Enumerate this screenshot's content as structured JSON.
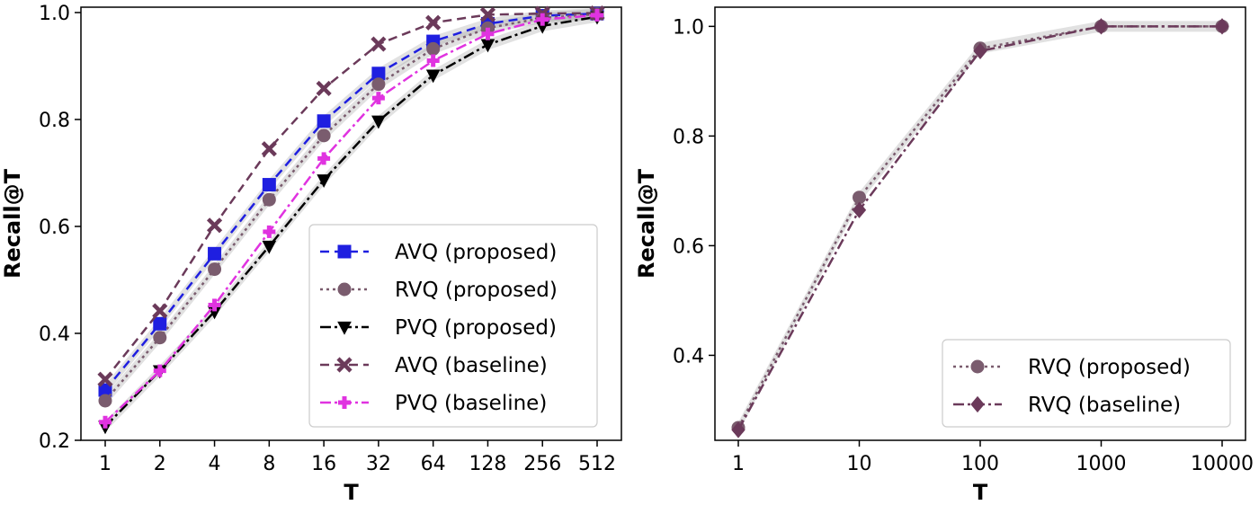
{
  "chart_data": [
    {
      "type": "line",
      "xlabel": "T",
      "ylabel": "Recall@T",
      "x_scale": "log2",
      "categories": [
        "1",
        "2",
        "4",
        "8",
        "16",
        "32",
        "64",
        "128",
        "256",
        "512"
      ],
      "x": [
        1,
        2,
        4,
        8,
        16,
        32,
        64,
        128,
        256,
        512
      ],
      "ylim": [
        0.2,
        1.01
      ],
      "yticks": [
        "0.2",
        "0.4",
        "0.6",
        "0.8",
        "1.0"
      ],
      "ytick_values": [
        0.2,
        0.4,
        0.6,
        0.8,
        1.0
      ],
      "grid": false,
      "legend_position": "lower-right",
      "series": [
        {
          "name": "AVQ (proposed)",
          "color": "#1f1fe0",
          "dash": "10,6",
          "marker": "square",
          "band": true,
          "values": [
            0.294,
            0.418,
            0.549,
            0.678,
            0.797,
            0.886,
            0.946,
            0.979,
            0.994,
            0.998
          ]
        },
        {
          "name": "RVQ (proposed)",
          "color": "#7a5c6e",
          "dash": "3,4",
          "marker": "circle",
          "band": true,
          "values": [
            0.274,
            0.392,
            0.52,
            0.65,
            0.77,
            0.866,
            0.932,
            0.971,
            0.99,
            0.997
          ]
        },
        {
          "name": "PVQ (proposed)",
          "color": "#000000",
          "dash": "12,4,3,4",
          "marker": "triangle-down",
          "band": true,
          "values": [
            0.226,
            0.33,
            0.441,
            0.563,
            0.687,
            0.797,
            0.883,
            0.94,
            0.975,
            0.992
          ]
        },
        {
          "name": "AVQ (baseline)",
          "color": "#6b3a5a",
          "dash": "10,6",
          "marker": "x",
          "band": false,
          "values": [
            0.314,
            0.442,
            0.602,
            0.745,
            0.858,
            0.941,
            0.981,
            0.996,
            0.998,
            0.999
          ]
        },
        {
          "name": "PVQ (baseline)",
          "color": "#e033e0",
          "dash": "12,4,3,4",
          "marker": "plus",
          "band": false,
          "values": [
            0.234,
            0.33,
            0.453,
            0.59,
            0.727,
            0.84,
            0.91,
            0.96,
            0.987,
            0.995
          ]
        }
      ]
    },
    {
      "type": "line",
      "xlabel": "T",
      "ylabel": "Recall@T",
      "x_scale": "log10",
      "categories": [
        "1",
        "10",
        "100",
        "1000",
        "10000"
      ],
      "x": [
        1,
        10,
        100,
        1000,
        10000
      ],
      "ylim": [
        0.245,
        1.035
      ],
      "yticks": [
        "0.4",
        "0.6",
        "0.8",
        "1.0"
      ],
      "ytick_values": [
        0.4,
        0.6,
        0.8,
        1.0
      ],
      "grid": false,
      "legend_position": "lower-right",
      "series": [
        {
          "name": "RVQ (proposed)",
          "color": "#7a5c6e",
          "dash": "3,4",
          "marker": "circle",
          "band": true,
          "values": [
            0.268,
            0.688,
            0.96,
            1.0,
            1.0
          ]
        },
        {
          "name": "RVQ (baseline)",
          "color": "#6b3a5a",
          "dash": "12,4,3,4",
          "marker": "diamond",
          "band": false,
          "values": [
            0.264,
            0.665,
            0.955,
            1.0,
            1.0
          ]
        }
      ]
    }
  ]
}
